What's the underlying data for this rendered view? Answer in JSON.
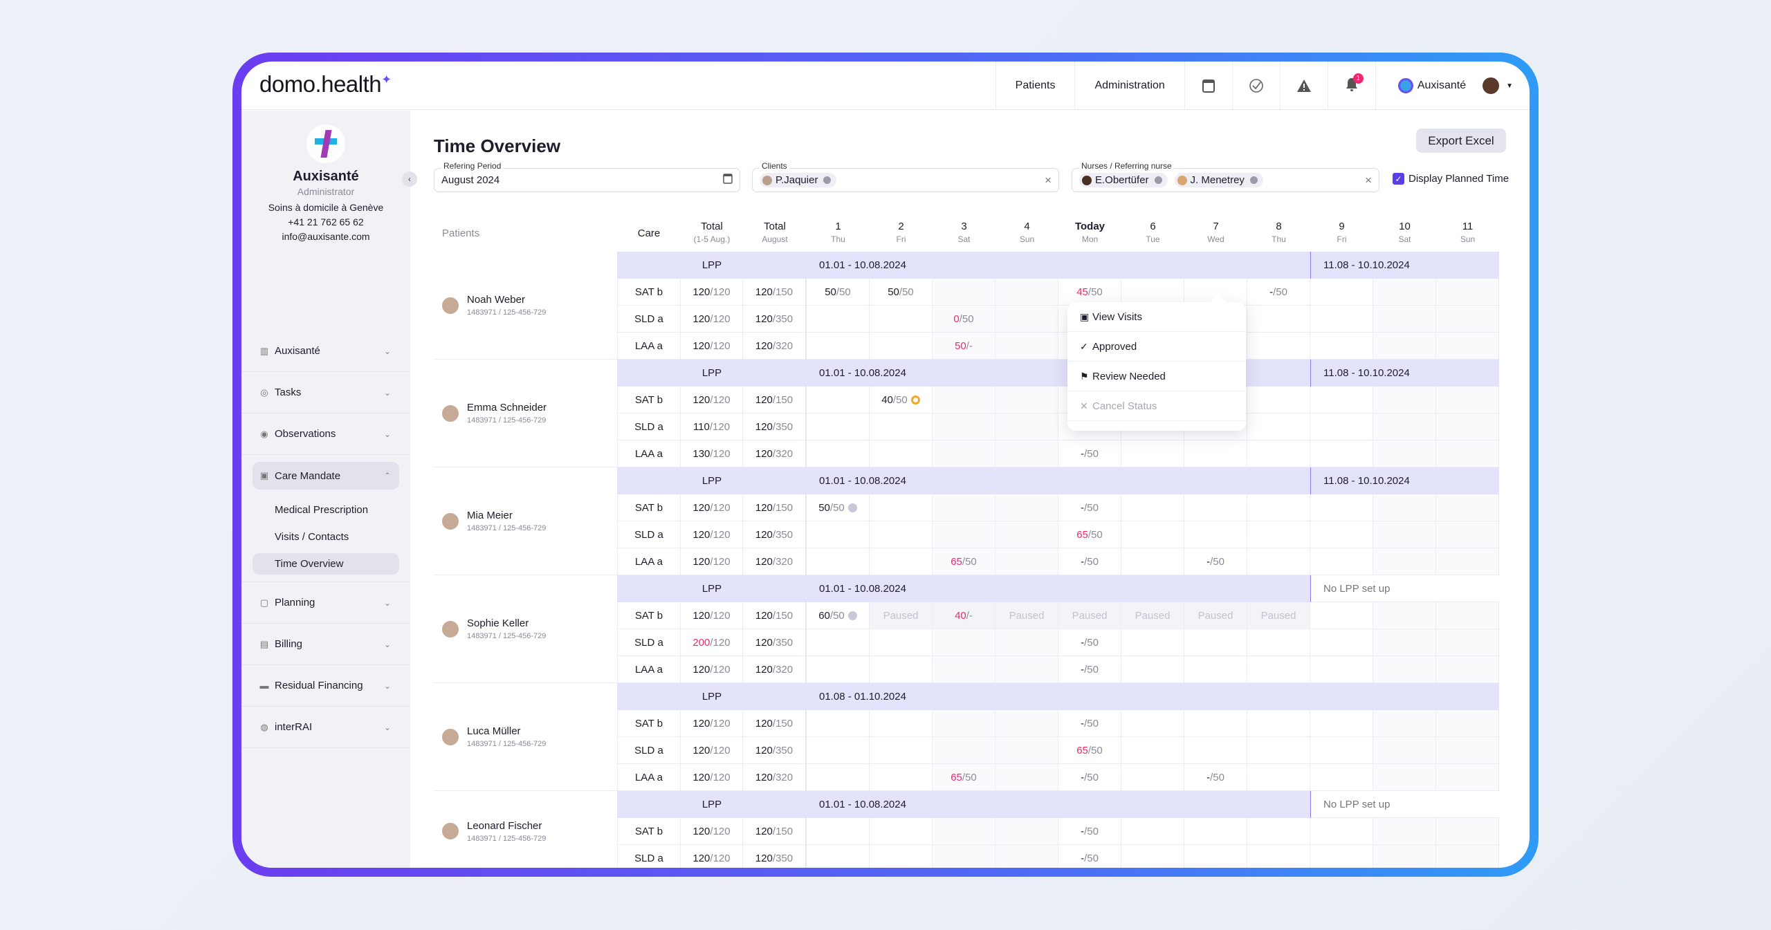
{
  "header": {
    "logo": "domo.health",
    "nav": [
      "Patients",
      "Administration"
    ],
    "notification_count": "1",
    "account": "Auxisanté",
    "icons": [
      "calendar-icon",
      "check-circle-icon",
      "warning-icon",
      "bell-icon"
    ]
  },
  "sidebar": {
    "org_name": "Auxisanté",
    "role": "Administrator",
    "description": "Soins à domicile à Genève",
    "phone": "+41 21 762 65 62",
    "email": "info@auxisante.com",
    "items": [
      {
        "label": "Auxisanté",
        "icon": "building-icon"
      },
      {
        "label": "Tasks",
        "icon": "check-circle-icon"
      },
      {
        "label": "Observations",
        "icon": "eye-icon"
      },
      {
        "label": "Care Mandate",
        "icon": "medical-bag-icon",
        "open": true,
        "sub": [
          "Medical Prescription",
          "Visits / Contacts",
          "Time Overview"
        ],
        "active_sub": "Time Overview"
      },
      {
        "label": "Planning",
        "icon": "calendar-icon"
      },
      {
        "label": "Billing",
        "icon": "invoice-icon"
      },
      {
        "label": "Residual Financing",
        "icon": "money-icon"
      },
      {
        "label": "interRAI",
        "icon": "globe-icon"
      }
    ]
  },
  "page": {
    "title": "Time Overview",
    "export_label": "Export Excel",
    "filters": {
      "period_label": "Refering Period",
      "period_value": "August 2024",
      "clients_label": "Clients",
      "clients": [
        "P.Jaquier"
      ],
      "nurses_label": "Nurses / Referring nurse",
      "nurses": [
        "E.Obertüfer",
        "J. Menetrey"
      ],
      "display_planned_label": "Display Planned Time",
      "display_planned": true
    }
  },
  "table": {
    "headers": {
      "patients": "Patients",
      "care": "Care",
      "total1": "Total",
      "total1_sub": "(1-5 Aug.)",
      "total2": "Total",
      "total2_sub": "August"
    },
    "days": [
      {
        "n": "1",
        "d": "Thu"
      },
      {
        "n": "2",
        "d": "Fri"
      },
      {
        "n": "3",
        "d": "Sat"
      },
      {
        "n": "4",
        "d": "Sun"
      },
      {
        "n": "Today",
        "d": "Mon"
      },
      {
        "n": "6",
        "d": "Tue"
      },
      {
        "n": "7",
        "d": "Wed"
      },
      {
        "n": "8",
        "d": "Thu"
      },
      {
        "n": "9",
        "d": "Fri"
      },
      {
        "n": "10",
        "d": "Sat"
      },
      {
        "n": "11",
        "d": "Sun"
      }
    ],
    "lpp_label": "LPP",
    "patients": [
      {
        "name": "Noah Weber",
        "ids": "1483971  /  125-456-729",
        "periods": [
          {
            "text": "01.01 - 10.08.2024",
            "days": [
              1,
              8
            ]
          },
          {
            "text": "11.08 - 10.10.2024",
            "days": [
              9,
              11
            ]
          }
        ],
        "rows": [
          {
            "care": "SAT b",
            "t1": [
              "120",
              "120"
            ],
            "t2": [
              "120",
              "150"
            ],
            "cells": {
              "1": {
                "v": [
                  "50",
                  "50"
                ]
              },
              "2": {
                "v": [
                  "50",
                  "50"
                ]
              },
              "5": {
                "v": [
                  "45",
                  "50"
                ],
                "over": true
              },
              "8": {
                "v": [
                  "-",
                  "50"
                ]
              }
            }
          },
          {
            "care": "SLD a",
            "t1": [
              "120",
              "120"
            ],
            "t2": [
              "120",
              "350"
            ],
            "cells": {
              "3": {
                "v": [
                  "0",
                  "50"
                ],
                "over": true
              }
            }
          },
          {
            "care": "LAA a",
            "t1": [
              "120",
              "120"
            ],
            "t2": [
              "120",
              "320"
            ],
            "cells": {
              "3": {
                "v": [
                  "50",
                  "-"
                ],
                "over": true
              }
            }
          }
        ]
      },
      {
        "name": "Emma Schneider",
        "ids": "1483971  /  125-456-729",
        "periods": [
          {
            "text": "01.01 - 10.08.2024",
            "days": [
              1,
              8
            ]
          },
          {
            "text": "11.08 - 10.10.2024",
            "days": [
              9,
              11
            ]
          }
        ],
        "rows": [
          {
            "care": "SAT b",
            "t1": [
              "120",
              "120"
            ],
            "t2": [
              "120",
              "150"
            ],
            "cells": {
              "2": {
                "v": [
                  "40",
                  "50"
                ],
                "icon": "pending"
              }
            }
          },
          {
            "care": "SLD a",
            "t1": [
              "110",
              "120"
            ],
            "t2": [
              "120",
              "350"
            ],
            "cells": {}
          },
          {
            "care": "LAA a",
            "t1": [
              "130",
              "120"
            ],
            "t2": [
              "120",
              "320"
            ],
            "cells": {
              "5": {
                "v": [
                  "-",
                  "50"
                ]
              }
            }
          }
        ]
      },
      {
        "name": "Mia Meier",
        "ids": "1483971  /  125-456-729",
        "periods": [
          {
            "text": "01.01 - 10.08.2024",
            "days": [
              1,
              8
            ]
          },
          {
            "text": "11.08 - 10.10.2024",
            "days": [
              9,
              11
            ]
          }
        ],
        "rows": [
          {
            "care": "SAT b",
            "t1": [
              "120",
              "120"
            ],
            "t2": [
              "120",
              "150"
            ],
            "cells": {
              "1": {
                "v": [
                  "50",
                  "50"
                ],
                "icon": "approved"
              },
              "5": {
                "v": [
                  "-",
                  "50"
                ]
              }
            }
          },
          {
            "care": "SLD a",
            "t1": [
              "120",
              "120"
            ],
            "t2": [
              "120",
              "350"
            ],
            "cells": {
              "5": {
                "v": [
                  "65",
                  "50"
                ],
                "over": true
              }
            }
          },
          {
            "care": "LAA a",
            "t1": [
              "120",
              "120"
            ],
            "t2": [
              "120",
              "320"
            ],
            "cells": {
              "3": {
                "v": [
                  "65",
                  "50"
                ],
                "over": true
              },
              "5": {
                "v": [
                  "-",
                  "50"
                ]
              },
              "7": {
                "v": [
                  "-",
                  "50"
                ]
              }
            }
          }
        ]
      },
      {
        "name": "Sophie Keller",
        "ids": "1483971  /  125-456-729",
        "periods": [
          {
            "text": "01.01 - 10.08.2024",
            "days": [
              1,
              8
            ]
          },
          {
            "text": "No LPP set up",
            "days": [
              9,
              11
            ],
            "none": true
          }
        ],
        "rows": [
          {
            "care": "SAT b",
            "t1": [
              "120",
              "120"
            ],
            "t2": [
              "120",
              "150"
            ],
            "cells": {
              "1": {
                "v": [
                  "60",
                  "50"
                ],
                "icon": "approved"
              },
              "2": {
                "paused": "Paused"
              },
              "3": {
                "v": [
                  "40",
                  "-"
                ],
                "over": true,
                "pausedbg": true
              },
              "4": {
                "paused": "Paused"
              },
              "5": {
                "paused": "Paused"
              },
              "6": {
                "paused": "Paused"
              },
              "7": {
                "paused": "Paused"
              },
              "8": {
                "paused": "Paused"
              }
            }
          },
          {
            "care": "SLD a",
            "t1": [
              "200",
              "120"
            ],
            "t1_over": true,
            "t2": [
              "120",
              "350"
            ],
            "cells": {
              "5": {
                "v": [
                  "-",
                  "50"
                ]
              }
            }
          },
          {
            "care": "LAA a",
            "t1": [
              "120",
              "120"
            ],
            "t2": [
              "120",
              "320"
            ],
            "cells": {
              "5": {
                "v": [
                  "-",
                  "50"
                ]
              }
            }
          }
        ]
      },
      {
        "name": "Luca Müller",
        "ids": "1483971  /  125-456-729",
        "periods": [
          {
            "text": "01.08 - 01.10.2024",
            "days": [
              1,
              11
            ]
          }
        ],
        "rows": [
          {
            "care": "SAT b",
            "t1": [
              "120",
              "120"
            ],
            "t2": [
              "120",
              "150"
            ],
            "cells": {
              "5": {
                "v": [
                  "-",
                  "50"
                ]
              }
            }
          },
          {
            "care": "SLD a",
            "t1": [
              "120",
              "120"
            ],
            "t2": [
              "120",
              "350"
            ],
            "cells": {
              "5": {
                "v": [
                  "65",
                  "50"
                ],
                "over": true
              }
            }
          },
          {
            "care": "LAA a",
            "t1": [
              "120",
              "120"
            ],
            "t2": [
              "120",
              "320"
            ],
            "cells": {
              "3": {
                "v": [
                  "65",
                  "50"
                ],
                "over": true
              },
              "5": {
                "v": [
                  "-",
                  "50"
                ]
              },
              "7": {
                "v": [
                  "-",
                  "50"
                ]
              }
            }
          }
        ]
      },
      {
        "name": "Leonard Fischer",
        "ids": "1483971  /  125-456-729",
        "periods": [
          {
            "text": "01.01 - 10.08.2024",
            "days": [
              1,
              8
            ]
          },
          {
            "text": "No LPP set up",
            "days": [
              9,
              11
            ],
            "none": true
          }
        ],
        "rows": [
          {
            "care": "SAT b",
            "t1": [
              "120",
              "120"
            ],
            "t2": [
              "120",
              "150"
            ],
            "cells": {
              "5": {
                "v": [
                  "-",
                  "50"
                ]
              }
            }
          },
          {
            "care": "SLD a",
            "t1": [
              "120",
              "120"
            ],
            "t2": [
              "120",
              "350"
            ],
            "cells": {
              "5": {
                "v": [
                  "-",
                  "50"
                ]
              }
            }
          }
        ]
      }
    ]
  },
  "context_menu": {
    "items": [
      {
        "label": "View Visits",
        "icon": "medical-bag-icon"
      },
      {
        "label": "Approved",
        "icon": "check-icon"
      },
      {
        "label": "Review Needed",
        "icon": "flag-icon"
      },
      {
        "label": "Cancel Status",
        "icon": "close-icon",
        "disabled": true
      }
    ]
  },
  "colors": {
    "accent": "#5a3fe6",
    "over": "#f0266f",
    "lpp_bg": "#e3e3fb"
  }
}
